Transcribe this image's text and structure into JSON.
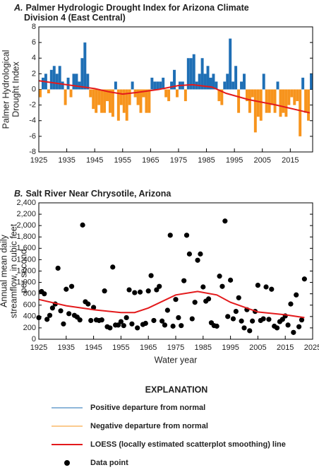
{
  "chart_data": [
    {
      "type": "bar",
      "label": "A.",
      "title": [
        "Palmer Hydrologic Drought Index for Arizona Climate",
        "Division 4 (East Central)"
      ],
      "ylabel": [
        "Palmer Hydrological",
        "Drought Index"
      ],
      "positive_color": "#1f6fb5",
      "negative_color": "#f7941d",
      "x": [
        1925,
        1926,
        1927,
        1928,
        1929,
        1930,
        1931,
        1932,
        1933,
        1934,
        1935,
        1936,
        1937,
        1938,
        1939,
        1940,
        1941,
        1942,
        1943,
        1944,
        1945,
        1946,
        1947,
        1948,
        1949,
        1950,
        1951,
        1952,
        1953,
        1954,
        1955,
        1956,
        1957,
        1958,
        1959,
        1960,
        1961,
        1962,
        1963,
        1964,
        1965,
        1966,
        1967,
        1968,
        1969,
        1970,
        1971,
        1972,
        1973,
        1974,
        1975,
        1976,
        1977,
        1978,
        1979,
        1980,
        1981,
        1982,
        1983,
        1984,
        1985,
        1986,
        1987,
        1988,
        1989,
        1990,
        1991,
        1992,
        1993,
        1994,
        1995,
        1996,
        1997,
        1998,
        1999,
        2000,
        2001,
        2002,
        2003,
        2004,
        2005,
        2006,
        2007,
        2008,
        2009,
        2010,
        2011,
        2012,
        2013,
        2014,
        2015,
        2016,
        2017,
        2018,
        2019,
        2020,
        2021,
        2022
      ],
      "values": [
        -1,
        1.5,
        2,
        -0.5,
        2.5,
        3,
        2,
        3,
        1,
        -2,
        1.5,
        -1,
        2,
        2,
        1,
        4,
        6,
        2,
        -1,
        -2.5,
        -3,
        -2,
        -3,
        -3,
        -1.5,
        -3,
        -3.5,
        1,
        -4,
        -2,
        -3,
        -4,
        -2,
        1,
        -1,
        -2,
        -3,
        -1,
        -3,
        -3,
        1.5,
        1,
        1,
        1,
        1.5,
        -1,
        -1.5,
        1,
        2.5,
        -1,
        1,
        1,
        -1.5,
        4,
        4,
        4.5,
        1,
        2,
        4,
        2,
        3,
        1.5,
        2,
        1,
        -1.5,
        -2,
        1,
        2,
        6.5,
        1,
        3,
        -3,
        1,
        2,
        -1.5,
        -3,
        -1,
        -5.5,
        -3.5,
        -4,
        2,
        -3,
        -3,
        -2,
        -3,
        1,
        -3.5,
        -3,
        -3.5,
        -2,
        -1,
        -2,
        -1.5,
        -6,
        1.5,
        -3,
        -4,
        2
      ],
      "loess": {
        "color": "#e31a1c",
        "x": [
          1925,
          1935,
          1945,
          1950,
          1955,
          1960,
          1968,
          1975,
          1980,
          1987,
          1992,
          2000,
          2010,
          2022
        ],
        "values": [
          1.1,
          0.6,
          0.1,
          -0.3,
          -0.6,
          -0.4,
          0,
          0.5,
          0.6,
          0.3,
          -0.5,
          -1.3,
          -2,
          -3
        ]
      },
      "xlim": [
        1925,
        2023
      ],
      "xticks": [
        1925,
        1935,
        1945,
        1955,
        1965,
        1975,
        1985,
        1995,
        2005,
        2015
      ],
      "ylim": [
        -8,
        8
      ],
      "yticks": [
        -8,
        -6,
        -4,
        -2,
        0,
        2,
        4,
        6,
        8
      ]
    },
    {
      "type": "scatter",
      "label": "B.",
      "title": [
        "Salt River Near Chrysotile, Arizona"
      ],
      "ylabel": [
        "Annual mean daily",
        "streamflow, in cubic feet",
        "per second"
      ],
      "xlabel": "Water year",
      "color": "#000000",
      "x": [
        1925,
        1926,
        1927,
        1928,
        1929,
        1930,
        1931,
        1932,
        1933,
        1934,
        1935,
        1936,
        1937,
        1938,
        1939,
        1940,
        1941,
        1942,
        1943,
        1944,
        1945,
        1946,
        1947,
        1948,
        1949,
        1950,
        1951,
        1952,
        1953,
        1954,
        1955,
        1956,
        1957,
        1958,
        1959,
        1960,
        1961,
        1962,
        1963,
        1964,
        1965,
        1966,
        1967,
        1968,
        1969,
        1970,
        1971,
        1972,
        1973,
        1974,
        1975,
        1976,
        1977,
        1978,
        1979,
        1980,
        1981,
        1982,
        1983,
        1984,
        1985,
        1986,
        1987,
        1988,
        1989,
        1990,
        1991,
        1992,
        1993,
        1994,
        1995,
        1996,
        1997,
        1998,
        1999,
        2000,
        2001,
        2002,
        2003,
        2004,
        2005,
        2006,
        2007,
        2008,
        2009,
        2010,
        2011,
        2012,
        2013,
        2014,
        2015,
        2016,
        2017,
        2018,
        2019,
        2020,
        2021,
        2022
      ],
      "values": [
        380,
        840,
        800,
        350,
        420,
        550,
        620,
        1250,
        500,
        270,
        880,
        450,
        930,
        420,
        390,
        340,
        2010,
        660,
        620,
        330,
        560,
        340,
        330,
        340,
        850,
        220,
        200,
        1270,
        250,
        250,
        310,
        240,
        380,
        870,
        270,
        820,
        200,
        830,
        260,
        280,
        850,
        1120,
        330,
        870,
        930,
        320,
        250,
        510,
        1830,
        230,
        700,
        380,
        240,
        1030,
        1830,
        1500,
        360,
        650,
        1390,
        1500,
        920,
        670,
        710,
        290,
        240,
        230,
        1110,
        930,
        2080,
        400,
        1040,
        360,
        490,
        730,
        320,
        200,
        520,
        150,
        320,
        490,
        950,
        330,
        360,
        920,
        350,
        880,
        230,
        200,
        310,
        350,
        410,
        250,
        620,
        120,
        780,
        220,
        340,
        1060
      ],
      "loess": {
        "color": "#e31a1c",
        "x": [
          1925,
          1935,
          1945,
          1955,
          1960,
          1965,
          1975,
          1983,
          1990,
          1995,
          2005,
          2015,
          2022
        ],
        "values": [
          700,
          590,
          520,
          470,
          470,
          550,
          780,
          840,
          780,
          650,
          480,
          430,
          380
        ]
      },
      "xlim": [
        1925,
        2025
      ],
      "xticks": [
        1925,
        1935,
        1945,
        1955,
        1965,
        1975,
        1985,
        1995,
        2005,
        2015,
        2025
      ],
      "ylim": [
        0,
        2400
      ],
      "yticks": [
        0,
        200,
        400,
        600,
        800,
        {
          "value": 1000,
          "label": "1,000"
        },
        {
          "value": 1200,
          "label": "1,200"
        },
        {
          "value": 1400,
          "label": "1,400"
        },
        {
          "value": 1600,
          "label": "1,600"
        },
        {
          "value": 1800,
          "label": "1,800"
        },
        {
          "value": 2000,
          "label": "2,000"
        },
        {
          "value": 2200,
          "label": "2,200"
        },
        {
          "value": 2400,
          "label": "2,400"
        }
      ]
    }
  ],
  "legend": {
    "title": "EXPLANATION",
    "items": [
      {
        "name": "Positive departure from normal",
        "color": "#1f6fb5",
        "marker": "thin-line"
      },
      {
        "name": "Negative departure from normal",
        "color": "#f7941d",
        "marker": "thin-line"
      },
      {
        "name": "LOESS (locally estimated scatterplot smoothing) line",
        "color": "#e31a1c",
        "marker": "thick-line"
      },
      {
        "name": "Data point",
        "color": "#000000",
        "marker": "dot"
      }
    ]
  }
}
